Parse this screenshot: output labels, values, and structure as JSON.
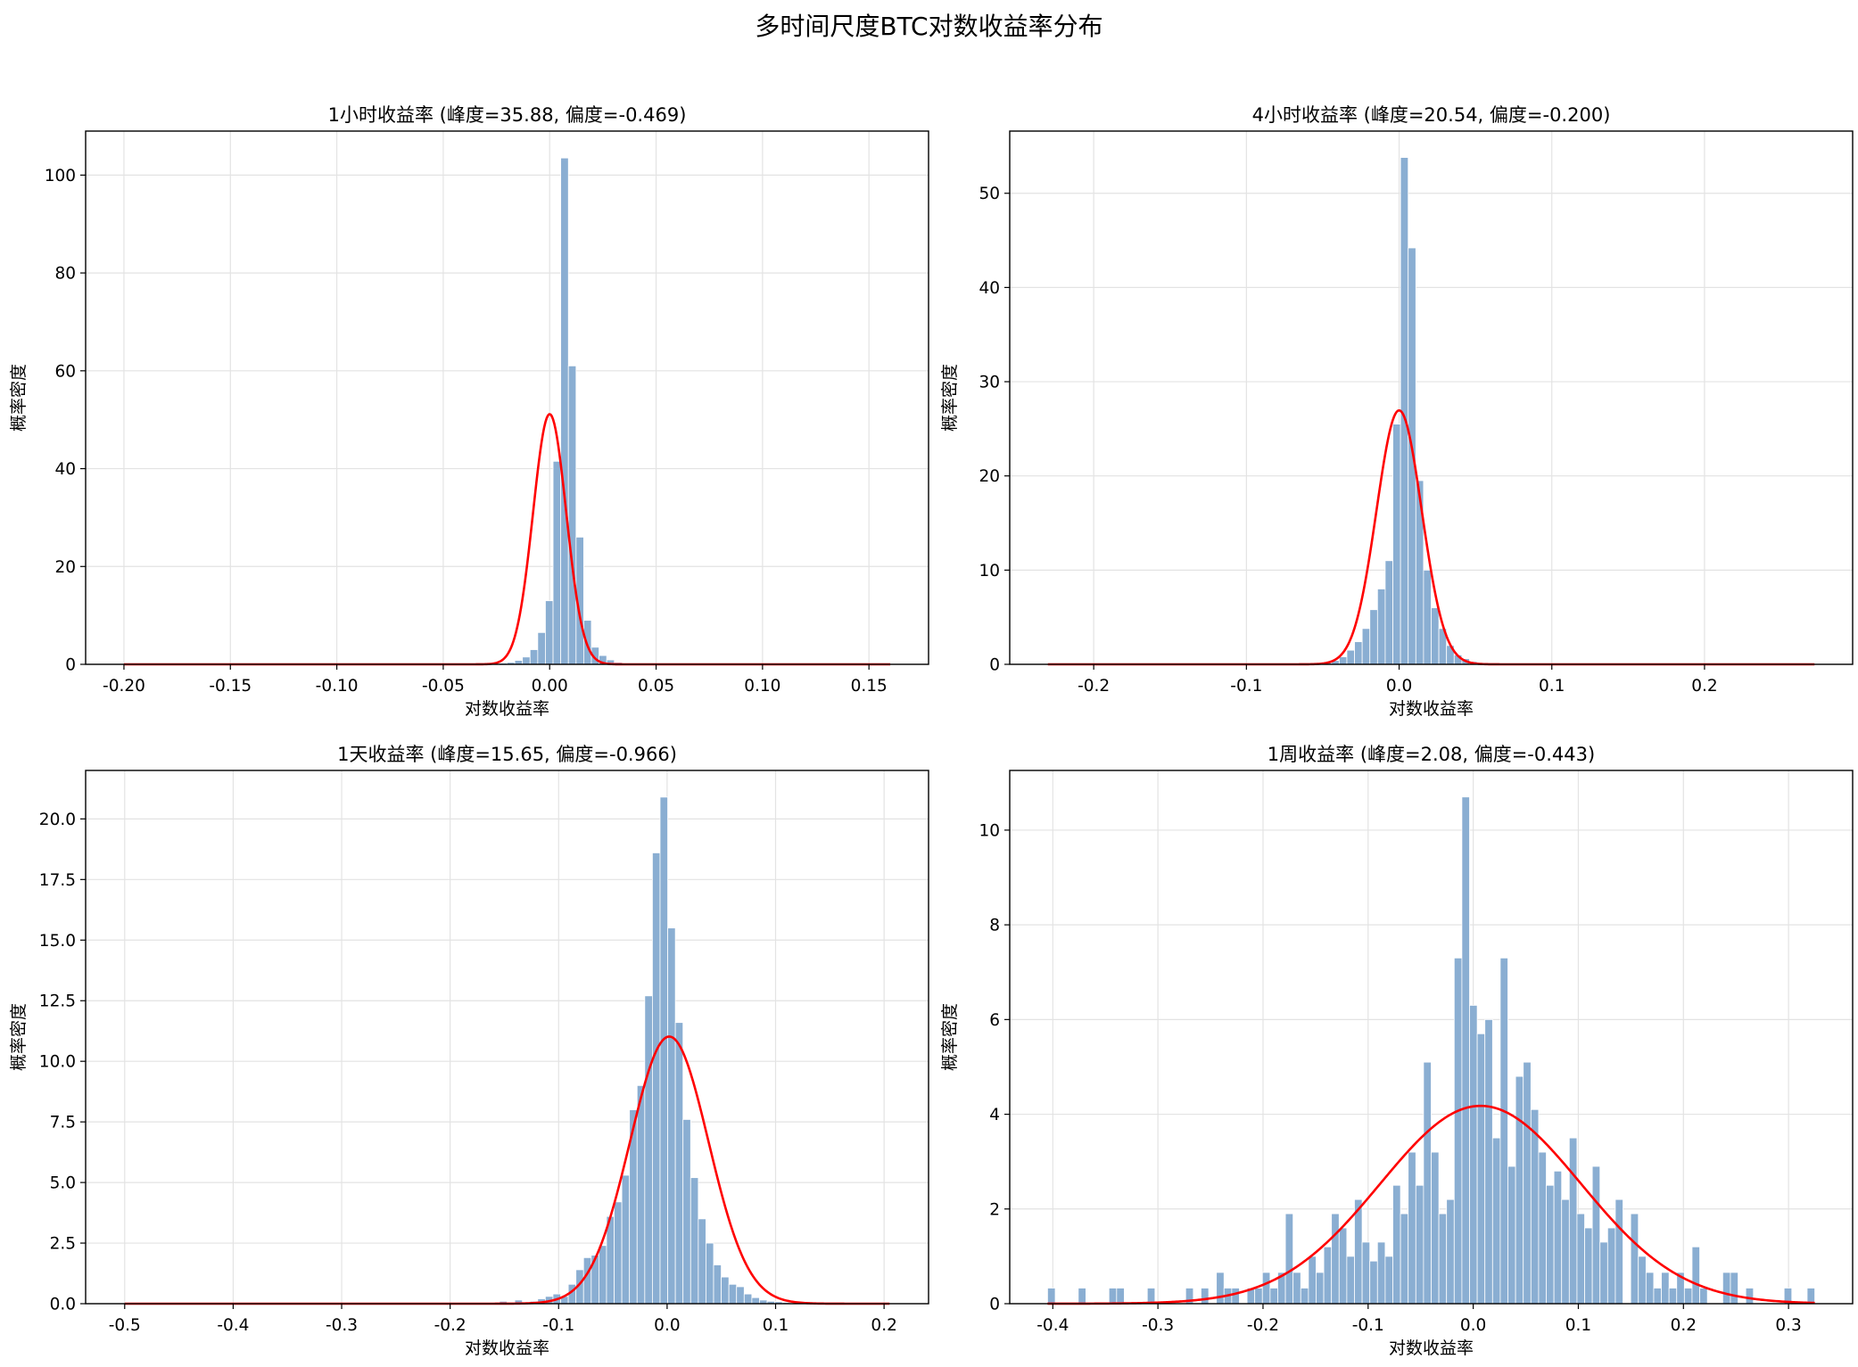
{
  "figure": {
    "suptitle": "多时间尺度BTC对数收益率分布"
  },
  "colors": {
    "bar_fill": "#8aaed2",
    "bar_edge": "#ffffff",
    "curve": "#ff0000",
    "grid": "#e3e3e3",
    "axis": "#000000"
  },
  "chart_data": [
    {
      "type": "bar",
      "title": "1小时收益率 (峰度=35.88, 偏度=-0.469)",
      "xlabel": "对数收益率",
      "ylabel": "概率密度",
      "xlim": [
        -0.218,
        0.178
      ],
      "ylim": [
        0,
        109
      ],
      "xticks": [
        -0.2,
        -0.15,
        -0.1,
        -0.05,
        0.0,
        0.05,
        0.1,
        0.15
      ],
      "xtick_labels": [
        "-0.20",
        "-0.15",
        "-0.10",
        "-0.05",
        "0.00",
        "0.05",
        "0.10",
        "0.15"
      ],
      "yticks": [
        0,
        20,
        40,
        60,
        80,
        100
      ],
      "ytick_labels": [
        "0",
        "20",
        "40",
        "60",
        "80",
        "100"
      ],
      "hist_range": [
        -0.2,
        0.16
      ],
      "bin_count": 100,
      "bars": [
        {
          "bin": 49,
          "value": 0.25
        },
        {
          "bin": 50,
          "value": 0.4
        },
        {
          "bin": 51,
          "value": 0.8
        },
        {
          "bin": 52,
          "value": 1.5
        },
        {
          "bin": 53,
          "value": 3.0
        },
        {
          "bin": 54,
          "value": 6.5
        },
        {
          "bin": 55,
          "value": 13.0
        },
        {
          "bin": 56,
          "value": 41.5
        },
        {
          "bin": 57,
          "value": 103.5
        },
        {
          "bin": 58,
          "value": 61.0
        },
        {
          "bin": 59,
          "value": 26.0
        },
        {
          "bin": 60,
          "value": 9.0
        },
        {
          "bin": 61,
          "value": 3.5
        },
        {
          "bin": 62,
          "value": 1.8
        },
        {
          "bin": 63,
          "value": 0.9
        },
        {
          "bin": 64,
          "value": 0.4
        },
        {
          "bin": 65,
          "value": 0.2
        }
      ],
      "normal_fit": {
        "mean": 0.0,
        "std": 0.0078,
        "x_range": [
          -0.2,
          0.16
        ]
      }
    },
    {
      "type": "bar",
      "title": "4小时收益率 (峰度=20.54, 偏度=-0.200)",
      "xlabel": "对数收益率",
      "ylabel": "概率密度",
      "xlim": [
        -0.255,
        0.297
      ],
      "ylim": [
        0,
        56.6
      ],
      "xticks": [
        -0.2,
        -0.1,
        0.0,
        0.1,
        0.2
      ],
      "xtick_labels": [
        "-0.2",
        "-0.1",
        "0.0",
        "0.1",
        "0.2"
      ],
      "yticks": [
        0,
        10,
        20,
        30,
        40,
        50
      ],
      "ytick_labels": [
        "0",
        "10",
        "20",
        "30",
        "40",
        "50"
      ],
      "hist_range": [
        -0.23,
        0.272
      ],
      "bin_count": 100,
      "bars": [
        {
          "bin": 36,
          "value": 0.2
        },
        {
          "bin": 37,
          "value": 0.4
        },
        {
          "bin": 38,
          "value": 0.8
        },
        {
          "bin": 39,
          "value": 1.5
        },
        {
          "bin": 40,
          "value": 2.4
        },
        {
          "bin": 41,
          "value": 3.8
        },
        {
          "bin": 42,
          "value": 5.8
        },
        {
          "bin": 43,
          "value": 8.0
        },
        {
          "bin": 44,
          "value": 11.0
        },
        {
          "bin": 45,
          "value": 25.5
        },
        {
          "bin": 46,
          "value": 53.8
        },
        {
          "bin": 47,
          "value": 44.2
        },
        {
          "bin": 48,
          "value": 19.5
        },
        {
          "bin": 49,
          "value": 10.0
        },
        {
          "bin": 50,
          "value": 6.0
        },
        {
          "bin": 51,
          "value": 3.8
        },
        {
          "bin": 52,
          "value": 2.0
        },
        {
          "bin": 53,
          "value": 1.0
        },
        {
          "bin": 54,
          "value": 0.6
        },
        {
          "bin": 55,
          "value": 0.3
        }
      ],
      "normal_fit": {
        "mean": 0.0,
        "std": 0.0148,
        "x_range": [
          -0.23,
          0.272
        ]
      }
    },
    {
      "type": "bar",
      "title": "1天收益率 (峰度=15.65, 偏度=-0.966)",
      "xlabel": "对数收益率",
      "ylabel": "概率密度",
      "xlim": [
        -0.536,
        0.241
      ],
      "ylim": [
        0,
        22
      ],
      "xticks": [
        -0.5,
        -0.4,
        -0.3,
        -0.2,
        -0.1,
        0.0,
        0.1,
        0.2
      ],
      "xtick_labels": [
        "-0.5",
        "-0.4",
        "-0.3",
        "-0.2",
        "-0.1",
        "0.0",
        "0.1",
        "0.2"
      ],
      "yticks": [
        0,
        2.5,
        5,
        7.5,
        10,
        12.5,
        15,
        17.5,
        20
      ],
      "ytick_labels": [
        "0.0",
        "2.5",
        "5.0",
        "7.5",
        "10.0",
        "12.5",
        "15.0",
        "17.5",
        "20.0"
      ],
      "hist_range": [
        -0.5,
        0.205
      ],
      "bin_count": 100,
      "bars": [
        {
          "bin": 49,
          "value": 0.1
        },
        {
          "bin": 51,
          "value": 0.15
        },
        {
          "bin": 53,
          "value": 0.1
        },
        {
          "bin": 54,
          "value": 0.2
        },
        {
          "bin": 55,
          "value": 0.3
        },
        {
          "bin": 56,
          "value": 0.4
        },
        {
          "bin": 57,
          "value": 0.3
        },
        {
          "bin": 58,
          "value": 0.8
        },
        {
          "bin": 59,
          "value": 1.4
        },
        {
          "bin": 60,
          "value": 1.9
        },
        {
          "bin": 61,
          "value": 2.0
        },
        {
          "bin": 62,
          "value": 2.4
        },
        {
          "bin": 63,
          "value": 3.6
        },
        {
          "bin": 64,
          "value": 4.2
        },
        {
          "bin": 65,
          "value": 5.3
        },
        {
          "bin": 66,
          "value": 8.0
        },
        {
          "bin": 67,
          "value": 9.0
        },
        {
          "bin": 68,
          "value": 12.7
        },
        {
          "bin": 69,
          "value": 18.6
        },
        {
          "bin": 70,
          "value": 20.9
        },
        {
          "bin": 71,
          "value": 15.5
        },
        {
          "bin": 72,
          "value": 11.6
        },
        {
          "bin": 73,
          "value": 7.6
        },
        {
          "bin": 74,
          "value": 5.2
        },
        {
          "bin": 75,
          "value": 3.5
        },
        {
          "bin": 76,
          "value": 2.5
        },
        {
          "bin": 77,
          "value": 1.6
        },
        {
          "bin": 78,
          "value": 1.1
        },
        {
          "bin": 79,
          "value": 0.8
        },
        {
          "bin": 80,
          "value": 0.7
        },
        {
          "bin": 81,
          "value": 0.4
        },
        {
          "bin": 82,
          "value": 0.25
        },
        {
          "bin": 83,
          "value": 0.15
        },
        {
          "bin": 84,
          "value": 0.1
        },
        {
          "bin": 85,
          "value": 0.08
        },
        {
          "bin": 86,
          "value": 0.05
        }
      ],
      "normal_fit": {
        "mean": 0.002,
        "std": 0.0362,
        "x_range": [
          -0.5,
          0.205
        ]
      }
    },
    {
      "type": "bar",
      "title": "1周收益率 (峰度=2.08, 偏度=-0.443)",
      "xlabel": "对数收益率",
      "ylabel": "概率密度",
      "xlim": [
        -0.441,
        0.361
      ],
      "ylim": [
        0,
        11.26
      ],
      "xticks": [
        -0.4,
        -0.3,
        -0.2,
        -0.1,
        0.0,
        0.1,
        0.2,
        0.3
      ],
      "xtick_labels": [
        "-0.4",
        "-0.3",
        "-0.2",
        "-0.1",
        "0.0",
        "0.1",
        "0.2",
        "0.3"
      ],
      "yticks": [
        0,
        2,
        4,
        6,
        8,
        10
      ],
      "ytick_labels": [
        "0",
        "2",
        "4",
        "6",
        "8",
        "10"
      ],
      "hist_range": [
        -0.405,
        0.325
      ],
      "bin_count": 100,
      "bars": [
        {
          "bin": 0,
          "value": 0.33
        },
        {
          "bin": 4,
          "value": 0.33
        },
        {
          "bin": 8,
          "value": 0.33
        },
        {
          "bin": 9,
          "value": 0.33
        },
        {
          "bin": 13,
          "value": 0.33
        },
        {
          "bin": 18,
          "value": 0.33
        },
        {
          "bin": 20,
          "value": 0.33
        },
        {
          "bin": 22,
          "value": 0.66
        },
        {
          "bin": 23,
          "value": 0.33
        },
        {
          "bin": 24,
          "value": 0.33
        },
        {
          "bin": 26,
          "value": 0.33
        },
        {
          "bin": 27,
          "value": 0.33
        },
        {
          "bin": 28,
          "value": 0.66
        },
        {
          "bin": 29,
          "value": 0.33
        },
        {
          "bin": 30,
          "value": 0.66
        },
        {
          "bin": 31,
          "value": 1.9
        },
        {
          "bin": 32,
          "value": 0.66
        },
        {
          "bin": 33,
          "value": 0.33
        },
        {
          "bin": 34,
          "value": 1.0
        },
        {
          "bin": 35,
          "value": 0.66
        },
        {
          "bin": 36,
          "value": 1.2
        },
        {
          "bin": 37,
          "value": 1.9
        },
        {
          "bin": 38,
          "value": 1.6
        },
        {
          "bin": 39,
          "value": 1.0
        },
        {
          "bin": 40,
          "value": 2.2
        },
        {
          "bin": 41,
          "value": 1.3
        },
        {
          "bin": 42,
          "value": 0.9
        },
        {
          "bin": 43,
          "value": 1.3
        },
        {
          "bin": 44,
          "value": 1.0
        },
        {
          "bin": 45,
          "value": 2.5
        },
        {
          "bin": 46,
          "value": 1.9
        },
        {
          "bin": 47,
          "value": 3.2
        },
        {
          "bin": 48,
          "value": 2.5
        },
        {
          "bin": 49,
          "value": 5.1
        },
        {
          "bin": 50,
          "value": 3.2
        },
        {
          "bin": 51,
          "value": 1.9
        },
        {
          "bin": 52,
          "value": 2.2
        },
        {
          "bin": 53,
          "value": 7.3
        },
        {
          "bin": 54,
          "value": 10.7
        },
        {
          "bin": 55,
          "value": 6.3
        },
        {
          "bin": 56,
          "value": 5.7
        },
        {
          "bin": 57,
          "value": 6.0
        },
        {
          "bin": 58,
          "value": 3.5
        },
        {
          "bin": 59,
          "value": 7.3
        },
        {
          "bin": 60,
          "value": 2.9
        },
        {
          "bin": 61,
          "value": 4.8
        },
        {
          "bin": 62,
          "value": 5.1
        },
        {
          "bin": 63,
          "value": 4.1
        },
        {
          "bin": 64,
          "value": 3.2
        },
        {
          "bin": 65,
          "value": 2.5
        },
        {
          "bin": 66,
          "value": 2.8
        },
        {
          "bin": 67,
          "value": 2.2
        },
        {
          "bin": 68,
          "value": 3.5
        },
        {
          "bin": 69,
          "value": 1.9
        },
        {
          "bin": 70,
          "value": 1.6
        },
        {
          "bin": 71,
          "value": 2.9
        },
        {
          "bin": 72,
          "value": 1.3
        },
        {
          "bin": 73,
          "value": 1.6
        },
        {
          "bin": 74,
          "value": 2.2
        },
        {
          "bin": 76,
          "value": 1.9
        },
        {
          "bin": 77,
          "value": 1.0
        },
        {
          "bin": 78,
          "value": 0.66
        },
        {
          "bin": 79,
          "value": 0.33
        },
        {
          "bin": 80,
          "value": 0.66
        },
        {
          "bin": 81,
          "value": 0.33
        },
        {
          "bin": 82,
          "value": 0.66
        },
        {
          "bin": 83,
          "value": 0.33
        },
        {
          "bin": 84,
          "value": 1.2
        },
        {
          "bin": 85,
          "value": 0.33
        },
        {
          "bin": 88,
          "value": 0.66
        },
        {
          "bin": 89,
          "value": 0.66
        },
        {
          "bin": 91,
          "value": 0.33
        },
        {
          "bin": 96,
          "value": 0.33
        },
        {
          "bin": 99,
          "value": 0.33
        }
      ],
      "normal_fit": {
        "mean": 0.007,
        "std": 0.0955,
        "x_range": [
          -0.405,
          0.325
        ]
      }
    }
  ]
}
